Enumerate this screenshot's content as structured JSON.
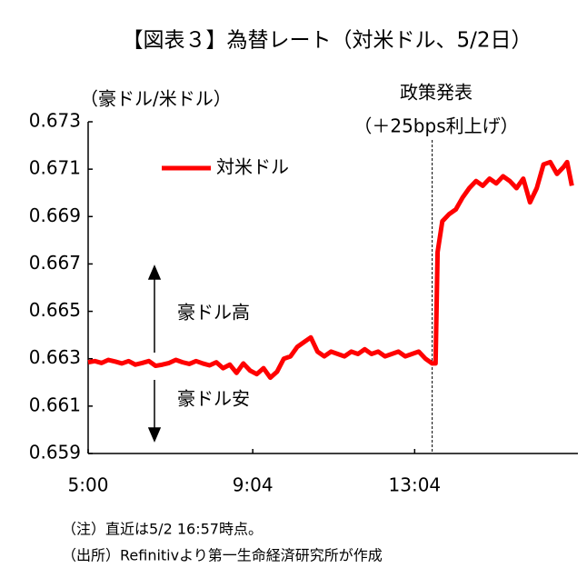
{
  "chart_data": {
    "type": "line",
    "title": "【図表３】為替レート（対米ドル、5/2日）",
    "y_label": "（豪ドル/米ドル）",
    "annotations": {
      "event": "政策発表",
      "event_detail": "（＋25bps利上げ）",
      "up": "豪ドル高",
      "down": "豪ドル安"
    },
    "notes": [
      "（注）直近は5/2 16:57時点。",
      "（出所）Refinitivより第一生命経済研究所が作成"
    ],
    "event_x": 810,
    "xlim": [
      300,
      1026
    ],
    "xticks": [
      {
        "value": 300,
        "label": "5:00"
      },
      {
        "value": 544,
        "label": "9:04"
      },
      {
        "value": 784,
        "label": "13:04"
      }
    ],
    "ylim": [
      0.659,
      0.673
    ],
    "yticks": [
      0.659,
      0.661,
      0.663,
      0.665,
      0.667,
      0.669,
      0.671,
      0.673
    ],
    "x": [
      300,
      310,
      320,
      330,
      340,
      350,
      360,
      370,
      380,
      390,
      400,
      410,
      420,
      430,
      440,
      450,
      460,
      470,
      480,
      490,
      500,
      510,
      520,
      530,
      540,
      550,
      560,
      570,
      580,
      590,
      600,
      610,
      620,
      630,
      640,
      650,
      660,
      670,
      680,
      690,
      700,
      710,
      720,
      730,
      740,
      750,
      760,
      770,
      780,
      790,
      800,
      810,
      815,
      818,
      825,
      835,
      845,
      855,
      865,
      875,
      885,
      895,
      905,
      915,
      925,
      935,
      945,
      955,
      965,
      975,
      985,
      995,
      1005,
      1010,
      1017
    ],
    "series": [
      {
        "name": "対米ドル",
        "color": "#ff0000",
        "values": [
          0.66285,
          0.6629,
          0.66282,
          0.66295,
          0.66288,
          0.6628,
          0.6629,
          0.66275,
          0.66282,
          0.6629,
          0.6627,
          0.66275,
          0.66282,
          0.66295,
          0.66285,
          0.66278,
          0.6629,
          0.6628,
          0.66272,
          0.66285,
          0.6626,
          0.66275,
          0.6624,
          0.6628,
          0.6625,
          0.66235,
          0.6626,
          0.6622,
          0.66245,
          0.663,
          0.6631,
          0.6635,
          0.6637,
          0.6639,
          0.6633,
          0.6631,
          0.6633,
          0.6632,
          0.6631,
          0.6633,
          0.6632,
          0.6634,
          0.6632,
          0.6633,
          0.6631,
          0.6632,
          0.6633,
          0.6631,
          0.6632,
          0.6633,
          0.663,
          0.6628,
          0.6628,
          0.6675,
          0.6688,
          0.6691,
          0.6693,
          0.6698,
          0.6702,
          0.6705,
          0.6703,
          0.6706,
          0.6704,
          0.6707,
          0.6705,
          0.6702,
          0.6706,
          0.6696,
          0.6702,
          0.6712,
          0.6713,
          0.6708,
          0.6711,
          0.6713,
          0.6703
        ]
      }
    ]
  }
}
